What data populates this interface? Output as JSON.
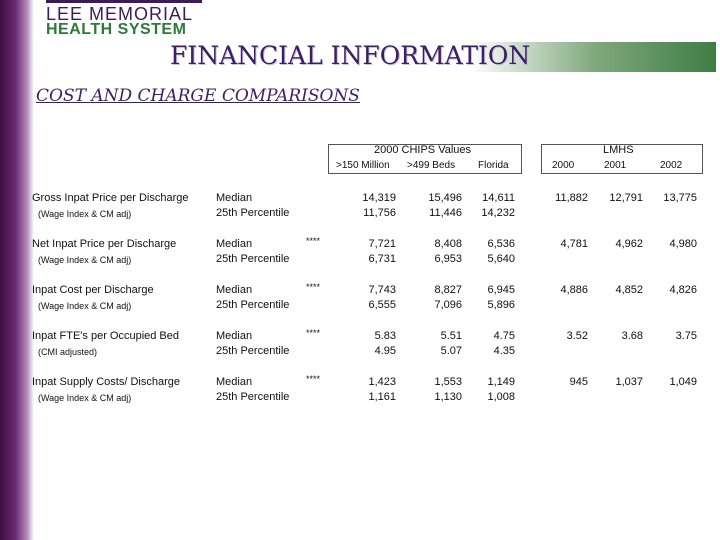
{
  "logo": {
    "line1": "LEE MEMORIAL",
    "line2": "HEALTH SYSTEM"
  },
  "page_title": "FINANCIAL INFORMATION",
  "subtitle": "COST AND CHARGE COMPARISONS",
  "table": {
    "group_chips": "2000 CHIPS Values",
    "group_lmhs": "LMHS",
    "columns": [
      ">150 Million",
      ">499 Beds",
      "Florida",
      "2000",
      "2001",
      "2002"
    ],
    "rows": [
      {
        "label": "Gross Inpat Price per Discharge",
        "sublabel": "(Wage Index & CM adj)",
        "stat1": "Median",
        "stat2": "25th Percentile",
        "flag": "",
        "median": [
          "14,319",
          "15,496",
          "14,611"
        ],
        "p25": [
          "11,756",
          "11,446",
          "14,232"
        ],
        "lmhs": [
          "11,882",
          "12,791",
          "13,775"
        ]
      },
      {
        "label": "Net Inpat Price per Discharge",
        "sublabel": "(Wage Index & CM adj)",
        "stat1": "Median",
        "stat2": "25th Percentile",
        "flag": "****",
        "median": [
          "7,721",
          "8,408",
          "6,536"
        ],
        "p25": [
          "6,731",
          "6,953",
          "5,640"
        ],
        "lmhs": [
          "4,781",
          "4,962",
          "4,980"
        ]
      },
      {
        "label": "Inpat Cost per Discharge",
        "sublabel": "(Wage Index & CM adj)",
        "stat1": "Median",
        "stat2": "25th Percentile",
        "flag": "****",
        "median": [
          "7,743",
          "8,827",
          "6,945"
        ],
        "p25": [
          "6,555",
          "7,096",
          "5,896"
        ],
        "lmhs": [
          "4,886",
          "4,852",
          "4,826"
        ]
      },
      {
        "label": "Inpat FTE's per Occupied Bed",
        "sublabel": "(CMI adjusted)",
        "stat1": "Median",
        "stat2": "25th Percentile",
        "flag": "****",
        "median": [
          "5.83",
          "5.51",
          "4.75"
        ],
        "p25": [
          "4.95",
          "5.07",
          "4.35"
        ],
        "lmhs": [
          "3.52",
          "3.68",
          "3.75"
        ]
      },
      {
        "label": "Inpat Supply Costs/ Discharge",
        "sublabel": "(Wage Index & CM adj)",
        "stat1": "Median",
        "stat2": "25th Percentile",
        "flag": "****",
        "median": [
          "1,423",
          "1,553",
          "1,149"
        ],
        "p25": [
          "1,161",
          "1,130",
          "1,008"
        ],
        "lmhs": [
          "945",
          "1,037",
          "1,049"
        ]
      }
    ]
  }
}
